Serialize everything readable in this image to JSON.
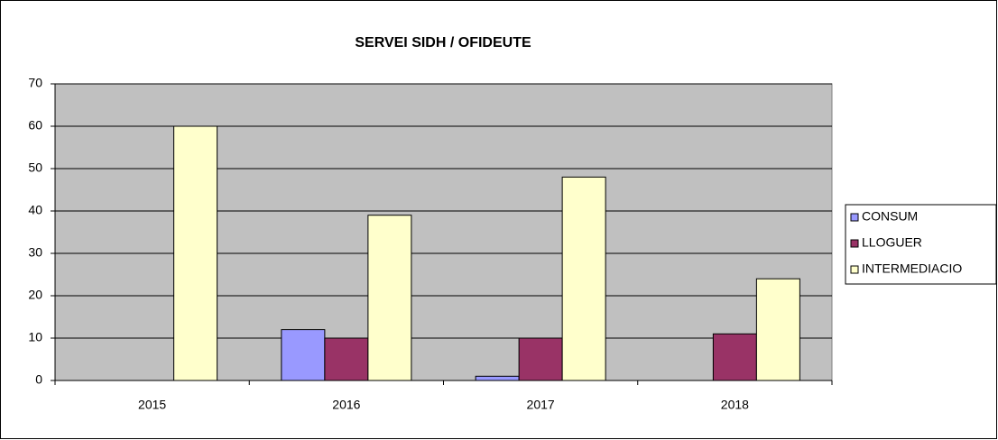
{
  "chart_data": {
    "type": "bar",
    "title": "SERVEI SIDH / OFIDEUTE",
    "categories": [
      "2015",
      "2016",
      "2017",
      "2018"
    ],
    "series": [
      {
        "name": "CONSUM",
        "color": "#9999ff",
        "values": [
          0,
          12,
          1,
          0
        ]
      },
      {
        "name": "LLOGUER",
        "color": "#993366",
        "values": [
          0,
          10,
          10,
          11
        ]
      },
      {
        "name": "INTERMEDIACIO",
        "color": "#ffffcc",
        "values": [
          60,
          39,
          48,
          24
        ]
      }
    ],
    "ylim": [
      0,
      70
    ],
    "yticks": [
      0,
      10,
      20,
      30,
      40,
      50,
      60,
      70
    ],
    "grid": true,
    "legend": "right"
  }
}
